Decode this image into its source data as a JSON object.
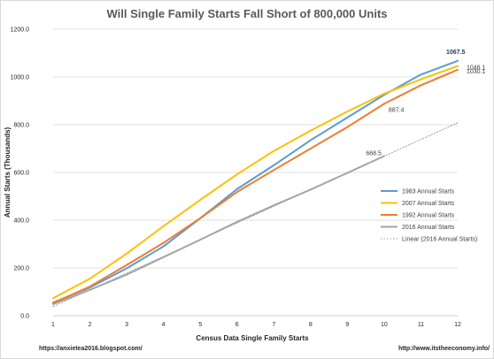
{
  "chart_data": {
    "type": "line",
    "title": "Will Single Family Starts Fall Short of 800,000 Units",
    "xlabel": "Census Data Single Family Starts",
    "ylabel": "Annual Starts (Thousands)",
    "x": [
      1,
      2,
      3,
      4,
      5,
      6,
      7,
      8,
      9,
      10,
      11,
      12
    ],
    "xlim": [
      1,
      12
    ],
    "ylim": [
      0,
      1200
    ],
    "yticks": [
      0,
      200,
      400,
      600,
      800,
      1000,
      1200
    ],
    "ytick_labels": [
      "0.0",
      "200.0",
      "400.0",
      "600.0",
      "800.0",
      "1000.0",
      "1200.0"
    ],
    "xtick_labels": [
      "1",
      "2",
      "3",
      "4",
      "5",
      "6",
      "7",
      "8",
      "9",
      "10",
      "11",
      "12"
    ],
    "grid": true,
    "legend_position": "right",
    "series": [
      {
        "name": "1983 Annual Starts",
        "color": "#5b9bd5",
        "style": "solid",
        "values": [
          55,
          118,
          198,
          290,
          408,
          530,
          630,
          735,
          830,
          925,
          1010,
          1067.5
        ]
      },
      {
        "name": "2007 Annual Starts",
        "color": "#ffc000",
        "style": "solid",
        "values": [
          73,
          155,
          260,
          375,
          485,
          592,
          690,
          775,
          855,
          930,
          990,
          1046.1
        ]
      },
      {
        "name": "1992 Annual Starts",
        "color": "#ed7d31",
        "style": "solid",
        "values": [
          53,
          122,
          212,
          305,
          408,
          518,
          610,
          700,
          790,
          887.4,
          965,
          1030.1
        ]
      },
      {
        "name": "2016 Annual Starts",
        "color": "#a5a5a5",
        "style": "solid",
        "values": [
          48,
          108,
          172,
          245,
          318,
          393,
          462,
          528,
          598,
          668.5,
          null,
          null
        ]
      },
      {
        "name": "Linear (2016 Annual Starts)",
        "color": "#a5a5a5",
        "style": "dotted",
        "values": [
          38,
          108,
          178,
          248,
          318,
          388,
          458,
          528,
          598,
          668,
          738,
          808
        ]
      }
    ],
    "annotations": [
      {
        "text": "1067.5",
        "series": "1983 Annual Starts",
        "x": 12,
        "y": 1067.5
      },
      {
        "text": "1046.1",
        "series": "2007 Annual Starts",
        "x": 12,
        "y": 1046.1
      },
      {
        "text": "1030.1",
        "series": "1992 Annual Starts",
        "x": 12,
        "y": 1030.1
      },
      {
        "text": "887.4",
        "series": "1992 Annual Starts",
        "x": 10,
        "y": 887.4
      },
      {
        "text": "668.5",
        "series": "2016 Annual Starts",
        "x": 10,
        "y": 668.5
      }
    ]
  },
  "footer": {
    "left": "https://anxietea2016.blogspot.com/",
    "right": "http://www.itstheeconomy.info/"
  }
}
